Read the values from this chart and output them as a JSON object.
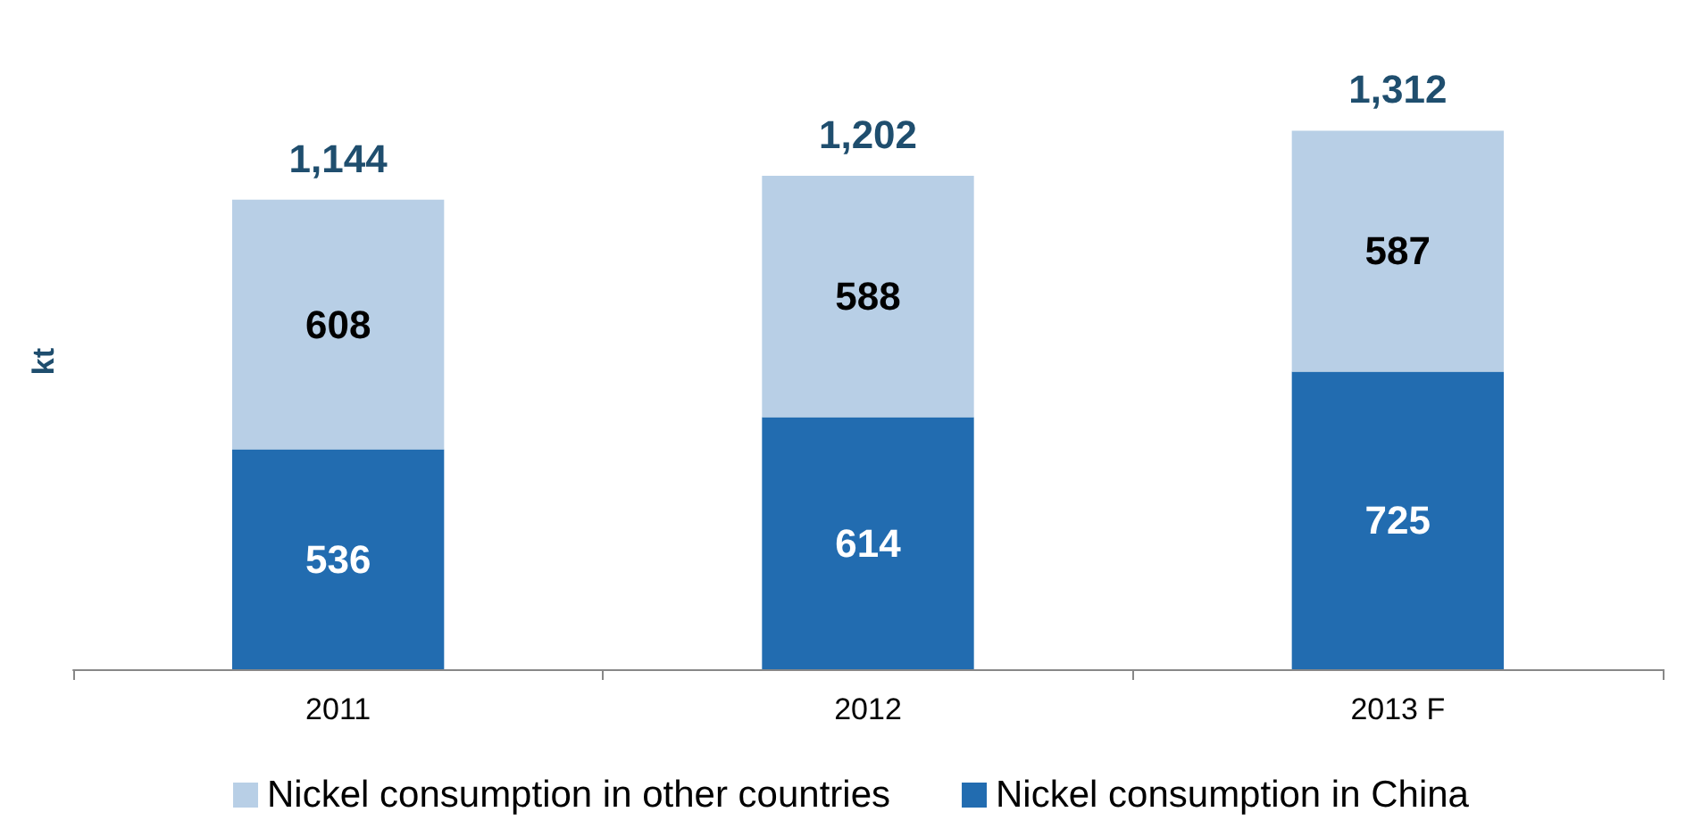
{
  "chart_data": {
    "type": "bar",
    "ylabel": "kt",
    "categories": [
      "2011",
      "2012",
      "2013 F"
    ],
    "stacked": true,
    "data_labels": true,
    "legend": "bottom",
    "grid": false,
    "series": [
      {
        "name": "Nickel consumption in China",
        "color": "#226cb0",
        "values": [
          536,
          614,
          725
        ]
      },
      {
        "name": "Nickel consumption in other countries",
        "color": "#b8cfe6",
        "values": [
          608,
          588,
          587
        ]
      }
    ],
    "totals": [
      "1,144",
      "1,202",
      "1,312"
    ]
  }
}
